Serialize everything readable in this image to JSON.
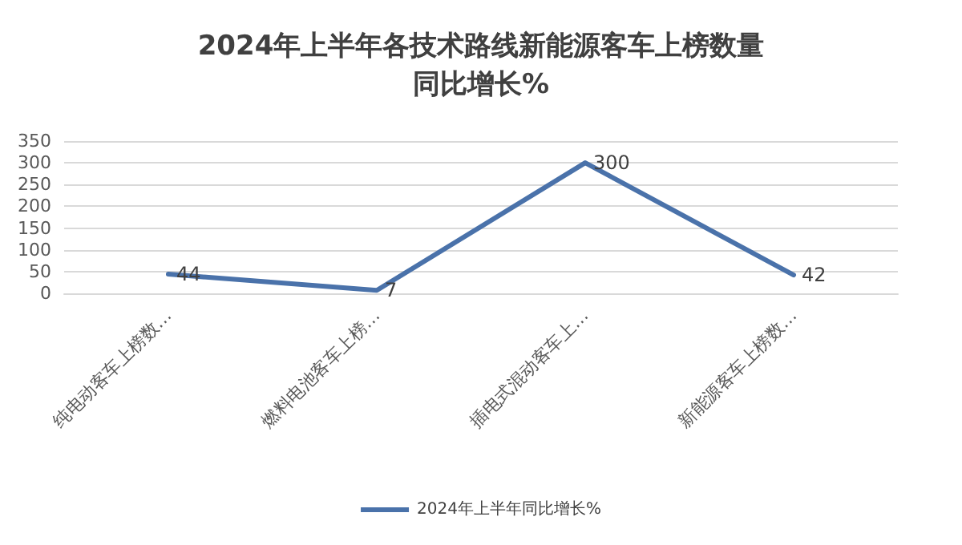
{
  "chart_data": {
    "type": "line",
    "title": "2024年上半年各技术路线新能源客车上榜数量同比增长%",
    "categories": [
      "纯电动客车上榜数…",
      "燃料电池客车上榜…",
      "插电式混动客车上…",
      "新能源客车上榜数…"
    ],
    "series": [
      {
        "name": "2024年上半年同比增长%",
        "color": "#4a72aa",
        "values": [
          44,
          7,
          300,
          42
        ]
      }
    ],
    "ylim": [
      0,
      350
    ],
    "yticks": [
      0,
      50,
      100,
      150,
      200,
      250,
      300,
      350
    ],
    "grid": "y",
    "legend": "bottom",
    "data_labels": true,
    "marker": "none",
    "line_style": "solid"
  }
}
